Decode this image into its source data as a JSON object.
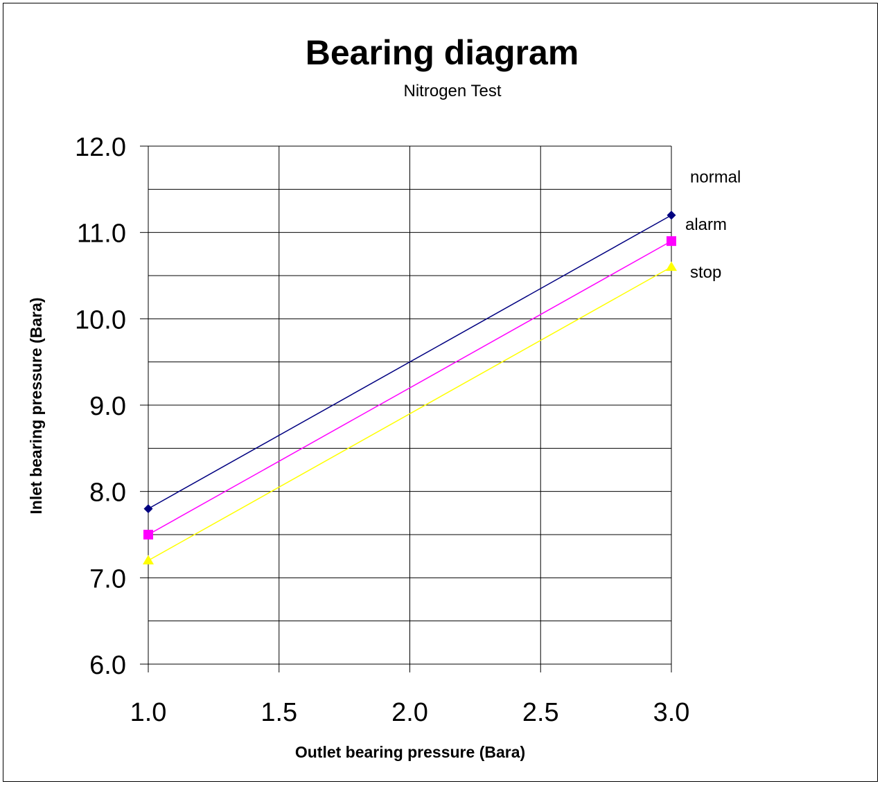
{
  "chart_data": {
    "type": "line",
    "title": "Bearing diagram",
    "subtitle": "Nitrogen Test",
    "xlabel": "Outlet bearing pressure (Bara)",
    "ylabel": "Inlet bearing pressure (Bara)",
    "xlim": [
      1.0,
      3.0
    ],
    "ylim": [
      6.0,
      12.0
    ],
    "x_ticks": [
      "1.0",
      "1.5",
      "2.0",
      "2.5",
      "3.0"
    ],
    "x_tick_values": [
      1.0,
      1.5,
      2.0,
      2.5,
      3.0
    ],
    "y_ticks": [
      "6.0",
      "7.0",
      "8.0",
      "9.0",
      "10.0",
      "11.0",
      "12.0"
    ],
    "y_tick_values": [
      6.0,
      7.0,
      8.0,
      9.0,
      10.0,
      11.0,
      12.0
    ],
    "y_minor_gridlines": [
      6.5,
      7.5,
      8.5,
      9.5,
      10.5,
      11.5
    ],
    "grid": true,
    "series": [
      {
        "x": [
          1.0,
          3.0
        ],
        "y": [
          7.8,
          11.2
        ],
        "color": "#000080",
        "marker": "diamond"
      },
      {
        "x": [
          1.0,
          3.0
        ],
        "y": [
          7.5,
          10.9
        ],
        "color": "#ff00ff",
        "marker": "square"
      },
      {
        "x": [
          1.0,
          3.0
        ],
        "y": [
          7.2,
          10.6
        ],
        "color": "#ffff00",
        "marker": "triangle"
      }
    ],
    "annotations": [
      {
        "text": "normal",
        "x": 3.0,
        "y": 11.65
      },
      {
        "text": "alarm",
        "x": 3.0,
        "y": 11.1
      },
      {
        "text": "stop",
        "x": 3.0,
        "y": 10.55
      }
    ]
  }
}
